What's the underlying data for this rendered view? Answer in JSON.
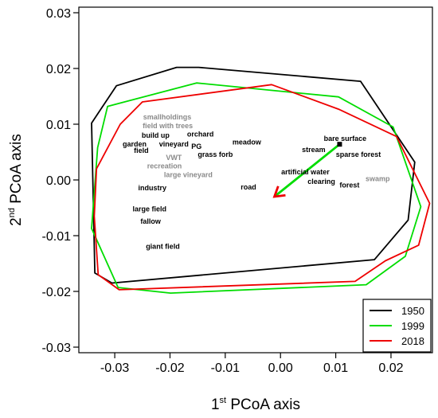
{
  "chart_data": {
    "type": "scatter",
    "xlabel": {
      "prefix": "1",
      "sup": "st",
      "suffix": " PCoA axis"
    },
    "ylabel": {
      "prefix": "2",
      "sup": "nd",
      "suffix": " PCoA axis"
    },
    "xlim": [
      -0.0365,
      0.0275
    ],
    "ylim": [
      -0.031,
      0.031
    ],
    "xticks": [
      -0.03,
      -0.02,
      -0.01,
      0.0,
      0.01,
      0.02
    ],
    "xtick_labels": [
      "-0.03",
      "-0.02",
      "-0.01",
      "0.00",
      "0.01",
      "0.02"
    ],
    "yticks": [
      -0.03,
      -0.02,
      -0.01,
      0.0,
      0.01,
      0.02,
      0.03
    ],
    "ytick_labels": [
      "-0.03",
      "-0.02",
      "-0.01",
      "0.00",
      "0.01",
      "0.02",
      "0.03"
    ],
    "grid": false,
    "legend_position": "bottom-right",
    "series": [
      {
        "name": "1950",
        "color": "#000000",
        "hull": [
          [
            -0.0342,
            0.0102
          ],
          [
            -0.0297,
            0.0169
          ],
          [
            -0.0188,
            0.0202
          ],
          [
            -0.0148,
            0.0202
          ],
          [
            0.0145,
            0.0177
          ],
          [
            0.0243,
            0.0032
          ],
          [
            0.0231,
            -0.0072
          ],
          [
            0.017,
            -0.0143
          ],
          [
            -0.0305,
            -0.0185
          ],
          [
            -0.0336,
            -0.0167
          ]
        ]
      },
      {
        "name": "1999",
        "color": "#00dd00",
        "hull": [
          [
            -0.0313,
            0.0132
          ],
          [
            -0.0152,
            0.0174
          ],
          [
            0.0105,
            0.0149
          ],
          [
            0.0204,
            0.0095
          ],
          [
            0.0254,
            -0.0048
          ],
          [
            0.0226,
            -0.0137
          ],
          [
            0.0155,
            -0.0188
          ],
          [
            -0.0199,
            -0.0203
          ],
          [
            -0.0294,
            -0.0193
          ],
          [
            -0.0342,
            -0.0087
          ],
          [
            -0.0331,
            0.0058
          ]
        ]
      },
      {
        "name": "2018",
        "color": "#ee0000",
        "hull": [
          [
            -0.029,
            0.01
          ],
          [
            -0.025,
            0.014
          ],
          [
            -0.0016,
            0.0171
          ],
          [
            0.0105,
            0.0127
          ],
          [
            0.021,
            0.0078
          ],
          [
            0.027,
            -0.0042
          ],
          [
            0.025,
            -0.0117
          ],
          [
            0.019,
            -0.0145
          ],
          [
            0.0135,
            -0.0182
          ],
          [
            -0.0292,
            -0.0197
          ],
          [
            -0.033,
            -0.017
          ],
          [
            -0.0337,
            -0.0065
          ],
          [
            -0.0333,
            0.002
          ]
        ]
      }
    ],
    "point_labels": [
      {
        "text": "smallholdings",
        "x": -0.0205,
        "y": 0.0113,
        "color": "#8a8a8a"
      },
      {
        "text": "field with trees",
        "x": -0.0204,
        "y": 0.0097,
        "color": "#8a8a8a"
      },
      {
        "text": "build up",
        "x": -0.0226,
        "y": 0.008,
        "color": "#000000"
      },
      {
        "text": "orchard",
        "x": -0.0145,
        "y": 0.0082,
        "color": "#000000"
      },
      {
        "text": "garden",
        "x": -0.0264,
        "y": 0.0064,
        "color": "#000000"
      },
      {
        "text": "vineyard",
        "x": -0.0193,
        "y": 0.0064,
        "color": "#000000"
      },
      {
        "text": "PG",
        "x": -0.0152,
        "y": 0.006,
        "color": "#000000"
      },
      {
        "text": "meadow",
        "x": -0.0061,
        "y": 0.0068,
        "color": "#000000"
      },
      {
        "text": "field",
        "x": -0.0252,
        "y": 0.0053,
        "color": "#000000"
      },
      {
        "text": "grass forb",
        "x": -0.0118,
        "y": 0.0046,
        "color": "#000000"
      },
      {
        "text": "VWT",
        "x": -0.0193,
        "y": 0.004,
        "color": "#8a8a8a"
      },
      {
        "text": "recreation",
        "x": -0.021,
        "y": 0.0025,
        "color": "#8a8a8a"
      },
      {
        "text": "large vineyard",
        "x": -0.0167,
        "y": 0.0009,
        "color": "#8a8a8a"
      },
      {
        "text": "bare surface",
        "x": 0.0117,
        "y": 0.0074,
        "color": "#000000"
      },
      {
        "text": "stream",
        "x": 0.006,
        "y": 0.0054,
        "color": "#000000"
      },
      {
        "text": "sparse forest",
        "x": 0.0141,
        "y": 0.0046,
        "color": "#000000"
      },
      {
        "text": "artificial water",
        "x": 0.0045,
        "y": 0.0014,
        "color": "#000000"
      },
      {
        "text": "swamp",
        "x": 0.0176,
        "y": 0.0002,
        "color": "#8a8a8a"
      },
      {
        "text": "clearing",
        "x": 0.0074,
        "y": -0.0003,
        "color": "#000000"
      },
      {
        "text": "forest",
        "x": 0.0125,
        "y": -0.0009,
        "color": "#000000"
      },
      {
        "text": "industry",
        "x": -0.0232,
        "y": -0.0014,
        "color": "#000000"
      },
      {
        "text": "road",
        "x": -0.0058,
        "y": -0.0013,
        "color": "#000000"
      },
      {
        "text": "large field",
        "x": -0.0237,
        "y": -0.0052,
        "color": "#000000"
      },
      {
        "text": "fallow",
        "x": -0.0235,
        "y": -0.0074,
        "color": "#000000"
      },
      {
        "text": "giant field",
        "x": -0.0213,
        "y": -0.0119,
        "color": "#000000"
      }
    ],
    "arrow": {
      "from": [
        0.0107,
        0.0064
      ],
      "to": [
        -0.0011,
        -0.003
      ],
      "color": "#00dd00",
      "head_color": "#ee0000"
    }
  }
}
